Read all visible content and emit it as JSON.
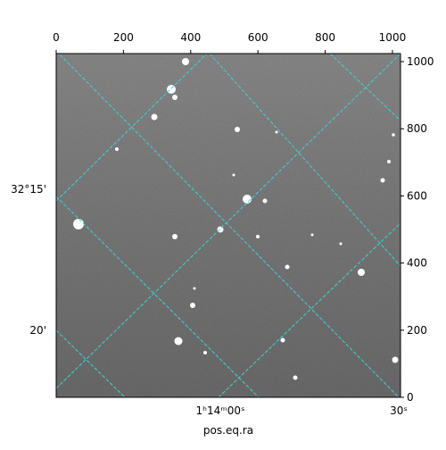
{
  "chart_data": {
    "type": "image",
    "xlim": [
      0,
      1024
    ],
    "xticks": [
      0,
      200,
      400,
      600,
      800,
      1000
    ],
    "ylim": [
      0,
      1024
    ],
    "yticks": [
      0,
      200,
      400,
      600,
      800,
      1000
    ],
    "ra_tick_labels": [
      "1ʰ14ᵐ00ˢ",
      "30ˢ"
    ],
    "dec_tick_labels": [
      "32°15'",
      "20'"
    ],
    "xlabel": "pos.eq.ra"
  }
}
